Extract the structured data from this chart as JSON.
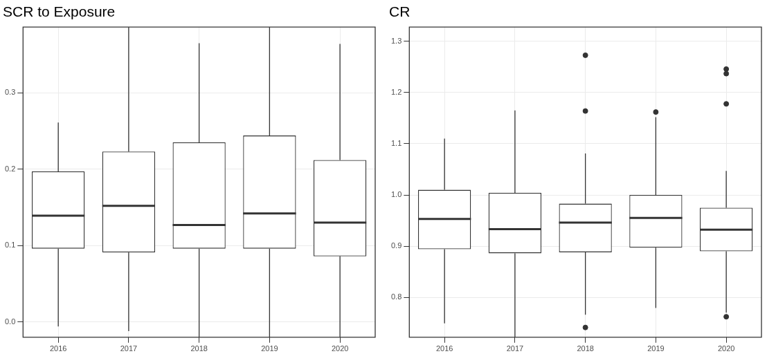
{
  "chart_data": [
    {
      "type": "box",
      "title": "SCR to Exposure",
      "categories": [
        "2016",
        "2017",
        "2018",
        "2019",
        "2020"
      ],
      "color": "#333333",
      "ylim": [
        -0.02,
        0.386
      ],
      "yticks": [
        {
          "value": 0,
          "label": "0.0"
        },
        0.1,
        0.2,
        0.3
      ],
      "grid": true,
      "boxes": [
        {
          "low": -0.006,
          "q1": 0.096,
          "median": 0.139,
          "q3": 0.197,
          "high": 0.261
        },
        {
          "low": -0.012,
          "q1": 0.091,
          "median": 0.152,
          "q3": 0.223,
          "high": 0.386
        },
        {
          "low": -0.02,
          "q1": 0.096,
          "median": 0.127,
          "q3": 0.235,
          "high": 0.365
        },
        {
          "low": -0.02,
          "q1": 0.096,
          "median": 0.142,
          "q3": 0.244,
          "high": 0.386
        },
        {
          "low": -0.02,
          "q1": 0.086,
          "median": 0.13,
          "q3": 0.212,
          "high": 0.364
        }
      ]
    },
    {
      "type": "box",
      "title": "CR",
      "categories": [
        "2016",
        "2017",
        "2018",
        "2019",
        "2020"
      ],
      "color": "#333333",
      "ylim": [
        0.722,
        1.328
      ],
      "yticks": [
        0.8,
        0.9,
        {
          "value": 1,
          "label": "1.0"
        },
        1.1,
        1.2,
        1.3
      ],
      "grid": true,
      "boxes": [
        {
          "low": 0.749,
          "q1": 0.894,
          "median": 0.953,
          "q3": 1.01,
          "high": 1.11
        },
        {
          "low": 0.722,
          "q1": 0.886,
          "median": 0.933,
          "q3": 1.004,
          "high": 1.165
        },
        {
          "low": 0.766,
          "q1": 0.888,
          "median": 0.946,
          "q3": 0.983,
          "high": 1.081,
          "outliers": [
            1.273,
            1.164,
            0.741
          ]
        },
        {
          "low": 0.779,
          "q1": 0.897,
          "median": 0.955,
          "q3": 1.0,
          "high": 1.152,
          "outliers": [
            1.162
          ]
        },
        {
          "low": 0.77,
          "q1": 0.89,
          "median": 0.932,
          "q3": 0.975,
          "high": 1.047,
          "outliers": [
            1.246,
            1.237,
            1.178,
            0.762
          ]
        }
      ]
    }
  ]
}
